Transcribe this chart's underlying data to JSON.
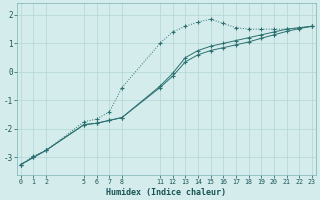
{
  "xlabel": "Humidex (Indice chaleur)",
  "bg_color": "#d5ecec",
  "grid_color": "#b8d8d8",
  "line_color": "#2b7070",
  "line1_x": [
    0,
    1,
    2,
    5,
    6,
    7,
    8,
    11,
    12,
    13,
    14,
    15,
    16,
    17,
    18,
    19,
    20,
    21,
    22,
    23
  ],
  "line1_y": [
    -3.25,
    -2.95,
    -2.75,
    -1.75,
    -1.65,
    -1.4,
    -0.55,
    1.0,
    1.4,
    1.6,
    1.75,
    1.85,
    1.7,
    1.55,
    1.5,
    1.5,
    1.5,
    1.5,
    1.55,
    1.6
  ],
  "line2_x": [
    0,
    1,
    2,
    5,
    6,
    7,
    8,
    11,
    12,
    13,
    14,
    15,
    16,
    17,
    18,
    19,
    20,
    21,
    22,
    23
  ],
  "line2_y": [
    -3.25,
    -3.0,
    -2.75,
    -1.85,
    -1.8,
    -1.7,
    -1.6,
    -0.5,
    -0.05,
    0.5,
    0.75,
    0.9,
    1.0,
    1.1,
    1.2,
    1.3,
    1.4,
    1.5,
    1.55,
    1.6
  ],
  "line3_x": [
    0,
    1,
    2,
    5,
    6,
    7,
    8,
    11,
    12,
    13,
    14,
    15,
    16,
    17,
    18,
    19,
    20,
    21,
    22,
    23
  ],
  "line3_y": [
    -3.25,
    -3.0,
    -2.75,
    -1.85,
    -1.8,
    -1.7,
    -1.6,
    -0.55,
    -0.15,
    0.35,
    0.6,
    0.75,
    0.85,
    0.95,
    1.05,
    1.18,
    1.3,
    1.42,
    1.52,
    1.6
  ],
  "yticks": [
    -3,
    -2,
    -1,
    0,
    1,
    2
  ],
  "xticks": [
    0,
    1,
    2,
    5,
    6,
    7,
    8,
    11,
    12,
    13,
    14,
    15,
    16,
    17,
    18,
    19,
    20,
    21,
    22,
    23
  ],
  "xlim": [
    -0.3,
    23.3
  ],
  "ylim": [
    -3.6,
    2.4
  ]
}
